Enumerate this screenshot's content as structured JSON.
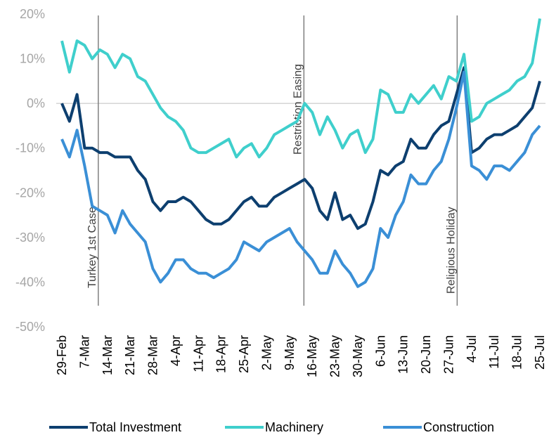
{
  "chart_data": {
    "type": "line",
    "categories": [
      "29-Feb",
      null,
      null,
      "7-Mar",
      null,
      null,
      "14-Mar",
      null,
      null,
      "21-Mar",
      null,
      null,
      "28-Mar",
      null,
      null,
      "4-Apr",
      null,
      null,
      "11-Apr",
      null,
      null,
      "18-Apr",
      null,
      null,
      "25-Apr",
      null,
      null,
      "2-May",
      null,
      null,
      "9-May",
      null,
      null,
      "16-May",
      null,
      null,
      "23-May",
      null,
      null,
      "30-May",
      null,
      null,
      "6-Jun",
      null,
      null,
      "13-Jun",
      null,
      null,
      "20-Jun",
      null,
      null,
      "27-Jun",
      null,
      null,
      "4-Jul",
      null,
      null,
      "11-Jul",
      null,
      null,
      "18-Jul",
      null,
      null,
      "25-Jul"
    ],
    "series": [
      {
        "name": "Total Investment",
        "color": "#0d3f6f",
        "values": [
          0,
          -4,
          2,
          -10,
          -10,
          -11,
          -11,
          -12,
          -12,
          -12,
          -15,
          -17,
          -22,
          -24,
          -22,
          -22,
          -21,
          -22,
          -24,
          -26,
          -27,
          -27,
          -26,
          -24,
          -22,
          -21,
          -23,
          -23,
          -21,
          -20,
          -19,
          -18,
          -17,
          -19,
          -24,
          -26,
          -20,
          -26,
          -25,
          -28,
          -27,
          -22,
          -15,
          -16,
          -14,
          -13,
          -8,
          -10,
          -10,
          -7,
          -5,
          -4,
          2,
          8,
          -11,
          -10,
          -8,
          -7,
          -7,
          -6,
          -5,
          -3,
          -1,
          5
        ]
      },
      {
        "name": "Machinery",
        "color": "#3fcfcc",
        "values": [
          14,
          7,
          14,
          13,
          10,
          12,
          11,
          8,
          11,
          10,
          6,
          5,
          2,
          -1,
          -3,
          -4,
          -6,
          -10,
          -11,
          -11,
          -10,
          -9,
          -8,
          -12,
          -10,
          -9,
          -12,
          -10,
          -7,
          -6,
          -5,
          -4,
          0,
          -2,
          -7,
          -3,
          -6,
          -10,
          -7,
          -6,
          -11,
          -8,
          3,
          2,
          -2,
          -2,
          2,
          0,
          2,
          4,
          1,
          6,
          5,
          11,
          -4,
          -3,
          0,
          1,
          2,
          3,
          5,
          6,
          9,
          19
        ]
      },
      {
        "name": "Construction",
        "color": "#3a8fd6",
        "values": [
          -8,
          -12,
          -6,
          -14,
          -23,
          -24,
          -25,
          -29,
          -24,
          -27,
          -29,
          -31,
          -37,
          -40,
          -38,
          -35,
          -35,
          -37,
          -38,
          -38,
          -39,
          -38,
          -37,
          -35,
          -31,
          -32,
          -33,
          -31,
          -30,
          -29,
          -28,
          -31,
          -33,
          -35,
          -38,
          -38,
          -33,
          -36,
          -38,
          -41,
          -40,
          -37,
          -28,
          -30,
          -25,
          -22,
          -16,
          -18,
          -18,
          -15,
          -13,
          -8,
          -1,
          7,
          -14,
          -15,
          -17,
          -14,
          -14,
          -15,
          -13,
          -11,
          -7,
          -5
        ]
      }
    ],
    "ylim": [
      -50,
      20
    ],
    "yticks": [
      {
        "value": -50,
        "label": "-50%"
      },
      {
        "value": -40,
        "label": "-40%"
      },
      {
        "value": -30,
        "label": "-30%"
      },
      {
        "value": -20,
        "label": "-20%"
      },
      {
        "value": -10,
        "label": "-10%"
      },
      {
        "value": 0,
        "label": "0%"
      },
      {
        "value": 10,
        "label": "10%"
      },
      {
        "value": 20,
        "label": "20%"
      }
    ],
    "annotations": [
      "Turkey 1st Case",
      "Restriction Easing",
      "Religious Holiday"
    ],
    "legend": "bottom"
  }
}
